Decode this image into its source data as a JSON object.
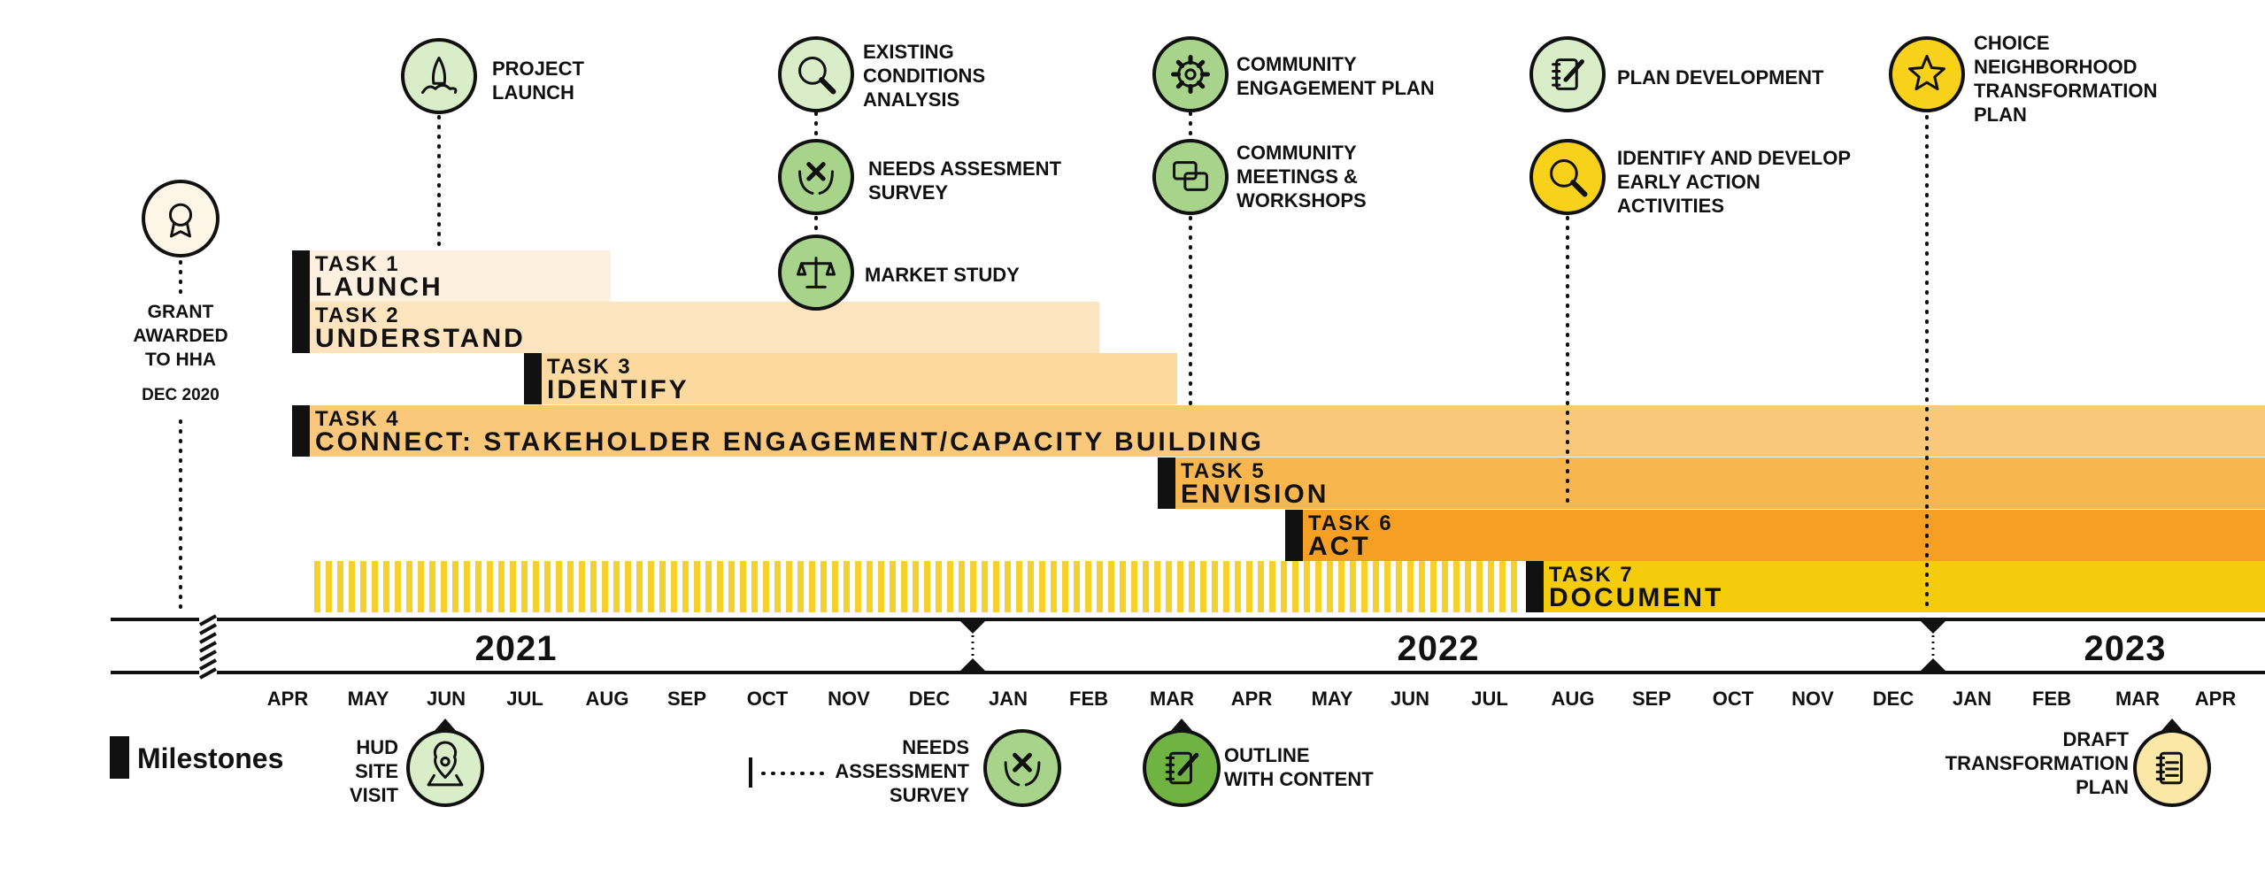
{
  "grant": {
    "line1": "GRANT",
    "line2": "AWARDED",
    "line3": "TO HHA",
    "date": "DEC 2020"
  },
  "events": [
    {
      "lines": [
        "PROJECT",
        "LAUNCH"
      ],
      "icon": "rocket-icon"
    },
    {
      "lines": [
        "EXISTING",
        "CONDITIONS",
        "ANALYSIS"
      ],
      "icon": "magnifier-icon"
    },
    {
      "lines": [
        "NEEDS ASSESMENT",
        "SURVEY"
      ],
      "icon": "hands-pencil-icon"
    },
    {
      "lines": [
        "MARKET STUDY"
      ],
      "icon": "scales-icon"
    },
    {
      "lines": [
        "COMMUNITY",
        "ENGAGEMENT PLAN"
      ],
      "icon": "gear-icon"
    },
    {
      "lines": [
        "COMMUNITY",
        "MEETINGS &",
        "WORKSHOPS"
      ],
      "icon": "chat-bubbles-icon"
    },
    {
      "lines": [
        "PLAN DEVELOPMENT"
      ],
      "icon": "notebook-pencil-icon"
    },
    {
      "lines": [
        "IDENTIFY AND DEVELOP",
        "EARLY ACTION",
        "ACTIVITIES"
      ],
      "icon": "magnifier-icon"
    },
    {
      "lines": [
        "CHOICE",
        "NEIGHBORHOOD",
        "TRANSFORMATION",
        "PLAN"
      ],
      "icon": "star-icon"
    }
  ],
  "tasks": [
    {
      "num": "TASK 1",
      "name": "LAUNCH",
      "color": "#FDF0DF"
    },
    {
      "num": "TASK 2",
      "name": "UNDERSTAND",
      "color": "#FCE4BE"
    },
    {
      "num": "TASK 3",
      "name": "IDENTIFY",
      "color": "#FBD99F"
    },
    {
      "num": "TASK 4",
      "name": "CONNECT: STAKEHOLDER ENGAGEMENT/CAPACITY BUILDING",
      "color": "#FAC87A"
    },
    {
      "num": "TASK 5",
      "name": "ENVISION",
      "color": "#F8B74E"
    },
    {
      "num": "TASK 6",
      "name": "ACT",
      "color": "#F5A023"
    },
    {
      "num": "TASK 7",
      "name": "DOCUMENT",
      "color": "#F5CC0C"
    }
  ],
  "years": [
    "2021",
    "2022",
    "2023"
  ],
  "months": [
    "APR",
    "MAY",
    "JUN",
    "JUL",
    "AUG",
    "SEP",
    "OCT",
    "NOV",
    "DEC",
    "JAN",
    "FEB",
    "MAR",
    "APR",
    "MAY",
    "JUN",
    "JUL",
    "AUG",
    "SEP",
    "OCT",
    "NOV",
    "DEC",
    "JAN",
    "FEB",
    "MAR",
    "APR"
  ],
  "legend": {
    "label": "Milestones"
  },
  "milestones": [
    {
      "lines": [
        "HUD",
        "SITE",
        "VISIT"
      ],
      "icon": "map-pin-icon"
    },
    {
      "lines": [
        "NEEDS",
        "ASSESSMENT",
        "SURVEY"
      ],
      "icon": "hands-pencil-icon"
    },
    {
      "lines": [
        "OUTLINE",
        "WITH CONTENT"
      ],
      "icon": "notebook-pencil-icon"
    },
    {
      "lines": [
        "DRAFT",
        "TRANSFORMATION",
        "PLAN"
      ],
      "icon": "notebook-icon"
    }
  ],
  "colors": {
    "ink": "#111111",
    "greenLight": "#D9EDC8",
    "greenMid": "#A8D38A",
    "greenDark": "#6FB343",
    "yellow": "#F7D11A",
    "yellowLight": "#FBE7A6",
    "stripe": "#F5D22A"
  }
}
